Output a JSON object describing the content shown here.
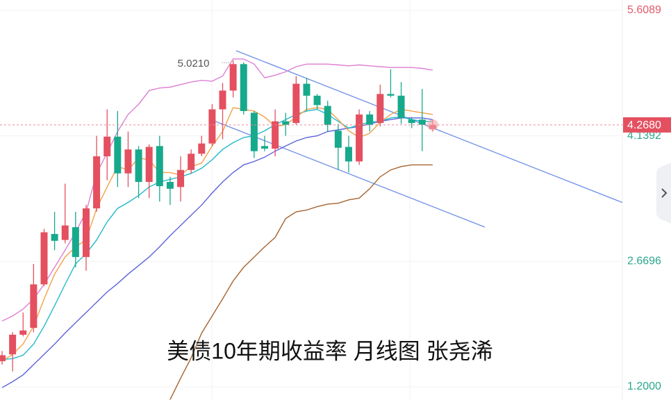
{
  "chart_data": {
    "type": "candlestick",
    "title": "美债10年期收益率 月线图 张尧浠",
    "open": [
      1.5,
      1.58,
      1.81,
      1.89,
      2.4,
      2.99,
      2.92,
      3.07,
      2.72,
      3.29,
      3.9,
      4.13,
      3.7,
      3.98,
      3.6,
      4.02,
      3.6,
      3.54,
      3.74,
      3.93,
      4.05,
      4.45,
      4.67,
      4.98,
      4.41,
      4.02,
      3.99,
      4.31,
      4.29,
      4.75,
      4.61,
      4.49,
      4.2,
      4.01,
      3.84,
      4.39,
      4.29,
      4.63,
      4.61,
      4.33,
      4.33,
      4.22
    ],
    "high": [
      1.62,
      1.84,
      2.07,
      2.64,
      3.05,
      3.25,
      3.58,
      3.25,
      3.33,
      4.14,
      4.45,
      4.43,
      4.19,
      4.02,
      4.04,
      4.14,
      3.66,
      3.9,
      3.98,
      4.14,
      4.51,
      4.76,
      5.021,
      5.0,
      4.43,
      4.14,
      4.45,
      4.41,
      4.84,
      4.82,
      4.63,
      4.55,
      4.28,
      4.14,
      4.45,
      4.43,
      4.74,
      4.92,
      4.77,
      4.36,
      4.69,
      4.33
    ],
    "low": [
      1.46,
      1.38,
      1.79,
      1.84,
      2.38,
      2.8,
      2.88,
      2.6,
      2.56,
      3.25,
      3.62,
      3.54,
      3.54,
      3.41,
      3.41,
      3.37,
      3.33,
      3.37,
      3.7,
      3.9,
      4.02,
      4.1,
      4.59,
      4.39,
      3.88,
      3.96,
      3.9,
      4.14,
      4.27,
      4.43,
      4.45,
      4.19,
      3.74,
      3.71,
      3.8,
      4.19,
      4.25,
      4.59,
      4.28,
      4.23,
      3.96,
      4.19
    ],
    "close": [
      1.57,
      1.81,
      1.86,
      2.4,
      3.01,
      2.91,
      3.09,
      2.72,
      3.29,
      3.9,
      4.13,
      3.7,
      3.98,
      3.6,
      4.01,
      3.55,
      3.52,
      3.74,
      3.93,
      4.05,
      4.45,
      4.67,
      4.98,
      4.43,
      3.96,
      3.99,
      4.31,
      4.27,
      4.75,
      4.61,
      4.5,
      4.27,
      4.0,
      3.84,
      4.39,
      4.27,
      4.63,
      4.61,
      4.35,
      4.29,
      4.27,
      4.268
    ],
    "up_color": "#e4505f",
    "down_color": "#17a98c",
    "series": [
      {
        "color": "#dc7fd2",
        "values": [
          1.97,
          2.03,
          2.11,
          2.23,
          2.4,
          2.6,
          2.8,
          3.01,
          3.25,
          3.7,
          3.94,
          4.19,
          4.39,
          4.51,
          4.67,
          4.7,
          4.71,
          4.74,
          4.77,
          4.79,
          4.78,
          4.84,
          5.04,
          5.04,
          4.98,
          4.82,
          4.85,
          4.89,
          4.95,
          4.98,
          4.98,
          4.98,
          4.97,
          4.96,
          4.97,
          4.96,
          4.95,
          4.94,
          4.94,
          4.94,
          4.93,
          4.91
        ]
      },
      {
        "color": "#a5632f",
        "values": [
          null,
          null,
          null,
          null,
          null,
          null,
          null,
          null,
          null,
          null,
          null,
          null,
          null,
          null,
          null,
          null,
          1.05,
          1.3,
          1.54,
          1.83,
          2.03,
          2.23,
          2.44,
          2.6,
          2.72,
          2.84,
          2.95,
          3.17,
          3.25,
          3.27,
          3.31,
          3.34,
          3.35,
          3.39,
          3.41,
          3.52,
          3.66,
          3.74,
          3.78,
          3.8,
          3.8,
          3.8
        ]
      },
      {
        "color": "#5b63da",
        "values": [
          1.19,
          1.26,
          1.34,
          1.46,
          1.58,
          1.7,
          1.83,
          1.95,
          2.07,
          2.19,
          2.31,
          2.41,
          2.52,
          2.62,
          2.72,
          2.84,
          2.97,
          3.09,
          3.21,
          3.33,
          3.47,
          3.6,
          3.71,
          3.8,
          3.84,
          3.89,
          3.96,
          4.02,
          4.08,
          4.12,
          4.14,
          4.19,
          4.21,
          4.23,
          4.25,
          4.28,
          4.31,
          4.33,
          4.35,
          4.35,
          4.35,
          4.33
        ]
      },
      {
        "color": "#22b9c9",
        "values": [
          1.52,
          1.53,
          1.57,
          1.7,
          1.91,
          2.15,
          2.4,
          2.64,
          2.76,
          2.92,
          3.13,
          3.29,
          3.36,
          3.44,
          3.54,
          3.6,
          3.63,
          3.66,
          3.7,
          3.76,
          3.86,
          3.98,
          4.06,
          4.12,
          4.14,
          4.2,
          4.27,
          4.33,
          4.39,
          4.43,
          4.45,
          4.39,
          4.31,
          4.23,
          4.27,
          4.3,
          4.31,
          4.35,
          4.36,
          4.33,
          4.31,
          4.31
        ]
      },
      {
        "color": "#f3a14a",
        "values": [
          1.5,
          1.58,
          1.7,
          1.91,
          2.23,
          2.52,
          2.72,
          2.84,
          2.92,
          3.29,
          3.54,
          3.78,
          3.74,
          3.88,
          3.86,
          3.71,
          3.71,
          3.68,
          3.78,
          3.82,
          4.02,
          4.19,
          4.47,
          4.45,
          4.43,
          4.36,
          4.25,
          4.27,
          4.36,
          4.45,
          4.47,
          4.45,
          4.33,
          4.2,
          4.12,
          4.17,
          4.3,
          4.39,
          4.45,
          4.43,
          4.41,
          4.39
        ]
      }
    ],
    "ylim": [
      1.2,
      5.6089
    ],
    "yticks": [
      5.6089,
      4.1392,
      2.6696,
      {
        "value": 1.2,
        "label": "1.2000"
      }
    ],
    "grid": true,
    "current_price": {
      "value": 4.268,
      "label": "4.2680"
    },
    "annotations": [
      {
        "value": 5.021,
        "label": "5.0210"
      }
    ]
  }
}
